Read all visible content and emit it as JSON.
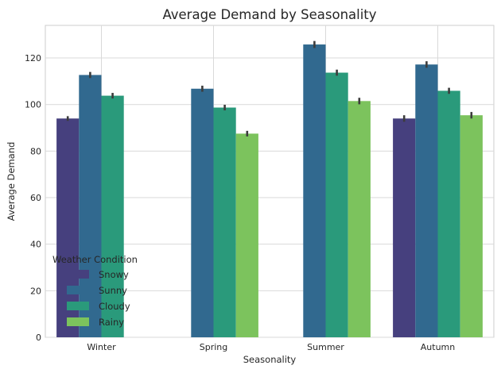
{
  "chart_data": {
    "type": "bar",
    "title": "Average Demand by Seasonality",
    "xlabel": "Seasonality",
    "ylabel": "Average Demand",
    "categories": [
      "Winter",
      "Spring",
      "Summer",
      "Autumn"
    ],
    "ylim": [
      0,
      134
    ],
    "yticks": [
      0,
      20,
      40,
      60,
      80,
      100,
      120
    ],
    "grid": true,
    "legend": {
      "title": "Weather Condition",
      "placement": "lower-left"
    },
    "series": [
      {
        "name": "Snowy",
        "color": "#46407e",
        "values": [
          94,
          null,
          null,
          94
        ],
        "errors": [
          1.0,
          null,
          null,
          1.4
        ]
      },
      {
        "name": "Sunny",
        "color": "#31698f",
        "values": [
          112.7,
          106.8,
          125.8,
          117.2
        ],
        "errors": [
          1.3,
          1.3,
          1.5,
          1.4
        ]
      },
      {
        "name": "Cloudy",
        "color": "#2a9a7b",
        "values": [
          103.8,
          98.7,
          113.7,
          105.9
        ],
        "errors": [
          1.2,
          1.2,
          1.3,
          1.3
        ]
      },
      {
        "name": "Rainy",
        "color": "#7cc35d",
        "values": [
          null,
          87.5,
          101.5,
          95.4
        ],
        "errors": [
          null,
          1.2,
          1.4,
          1.4
        ]
      }
    ]
  }
}
